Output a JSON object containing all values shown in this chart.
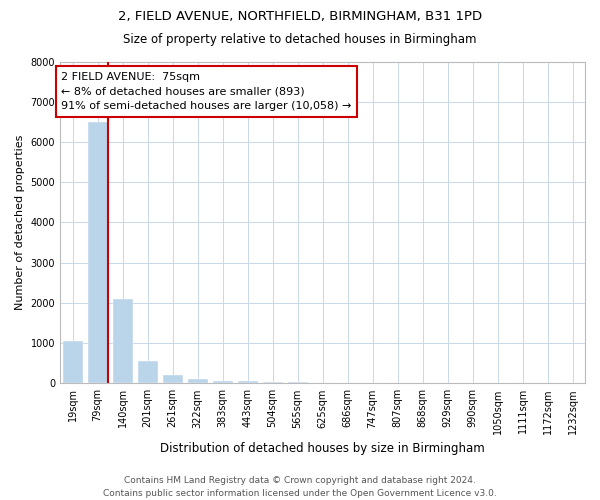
{
  "title": "2, FIELD AVENUE, NORTHFIELD, BIRMINGHAM, B31 1PD",
  "subtitle": "Size of property relative to detached houses in Birmingham",
  "xlabel": "Distribution of detached houses by size in Birmingham",
  "ylabel": "Number of detached properties",
  "categories": [
    "19sqm",
    "79sqm",
    "140sqm",
    "201sqm",
    "261sqm",
    "322sqm",
    "383sqm",
    "443sqm",
    "504sqm",
    "565sqm",
    "625sqm",
    "686sqm",
    "747sqm",
    "807sqm",
    "868sqm",
    "929sqm",
    "990sqm",
    "1050sqm",
    "1111sqm",
    "1172sqm",
    "1232sqm"
  ],
  "values": [
    1050,
    6500,
    2100,
    560,
    210,
    100,
    65,
    45,
    30,
    22,
    16,
    12,
    9,
    7,
    5,
    4,
    3,
    2,
    2,
    1,
    1
  ],
  "bar_color": "#bad4ea",
  "property_line_index": 1,
  "property_sqm": 75,
  "annotation_title": "2 FIELD AVENUE:  75sqm",
  "annotation_line1": "← 8% of detached houses are smaller (893)",
  "annotation_line2": "91% of semi-detached houses are larger (10,058) →",
  "annotation_box_color": "#ffffff",
  "annotation_box_edge": "#cc0000",
  "ylim": [
    0,
    8000
  ],
  "yticks": [
    0,
    1000,
    2000,
    3000,
    4000,
    5000,
    6000,
    7000,
    8000
  ],
  "footer_line1": "Contains HM Land Registry data © Crown copyright and database right 2024.",
  "footer_line2": "Contains public sector information licensed under the Open Government Licence v3.0.",
  "background_color": "#ffffff",
  "grid_color": "#c8d8e8",
  "title_fontsize": 9.5,
  "subtitle_fontsize": 8.5,
  "ylabel_fontsize": 8,
  "xlabel_fontsize": 8.5,
  "annotation_fontsize": 8,
  "tick_fontsize": 7,
  "footer_fontsize": 6.5
}
